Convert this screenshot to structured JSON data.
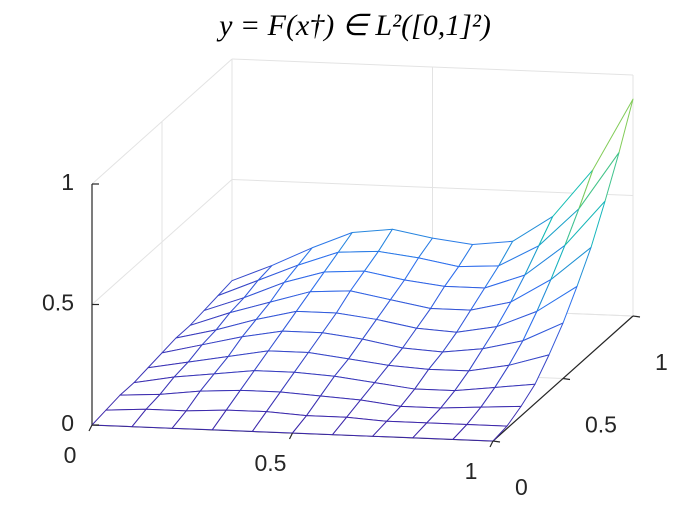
{
  "chart_data": {
    "type": "mesh",
    "title": "y = F(x†) ∈ L²([0,1]²)",
    "x": [
      0,
      0.1,
      0.2,
      0.3,
      0.4,
      0.5,
      0.6,
      0.7,
      0.8,
      0.9,
      1
    ],
    "y": [
      0,
      0.1,
      0.2,
      0.3,
      0.4,
      0.5,
      0.6,
      0.7,
      0.8,
      0.9,
      1
    ],
    "z": [
      [
        0,
        0,
        0,
        0,
        0,
        0,
        0,
        0,
        0,
        0,
        0
      ],
      [
        0.01,
        0.02,
        0.02,
        0.03,
        0.03,
        0.02,
        0.02,
        0.01,
        0.01,
        0.01,
        0.01
      ],
      [
        0.02,
        0.03,
        0.05,
        0.06,
        0.06,
        0.05,
        0.04,
        0.02,
        0.02,
        0.03,
        0.04
      ],
      [
        0.02,
        0.05,
        0.07,
        0.09,
        0.09,
        0.08,
        0.06,
        0.04,
        0.04,
        0.06,
        0.08
      ],
      [
        0.03,
        0.06,
        0.09,
        0.12,
        0.12,
        0.1,
        0.08,
        0.07,
        0.07,
        0.1,
        0.15
      ],
      [
        0.04,
        0.08,
        0.12,
        0.15,
        0.15,
        0.13,
        0.1,
        0.09,
        0.11,
        0.15,
        0.23
      ],
      [
        0.05,
        0.09,
        0.14,
        0.18,
        0.18,
        0.16,
        0.13,
        0.12,
        0.15,
        0.22,
        0.33
      ],
      [
        0.05,
        0.11,
        0.16,
        0.21,
        0.22,
        0.19,
        0.16,
        0.16,
        0.2,
        0.3,
        0.44
      ],
      [
        0.06,
        0.12,
        0.19,
        0.24,
        0.25,
        0.22,
        0.2,
        0.2,
        0.26,
        0.39,
        0.58
      ],
      [
        0.07,
        0.14,
        0.21,
        0.27,
        0.28,
        0.26,
        0.23,
        0.24,
        0.33,
        0.49,
        0.73
      ],
      [
        0.08,
        0.15,
        0.23,
        0.3,
        0.32,
        0.29,
        0.27,
        0.29,
        0.4,
        0.6,
        0.9
      ]
    ],
    "xlim": [
      0,
      1
    ],
    "ylim": [
      0,
      1
    ],
    "zlim": [
      0,
      1
    ],
    "xticks": [
      0,
      0.5,
      1
    ],
    "yticks": [
      0,
      0.5,
      1
    ],
    "zticks": [
      0,
      0.5,
      1
    ],
    "grid": true,
    "colormap": [
      "#3e26a8",
      "#2f6fef",
      "#13beb6",
      "#7fcb5a",
      "#f9fb15"
    ]
  }
}
